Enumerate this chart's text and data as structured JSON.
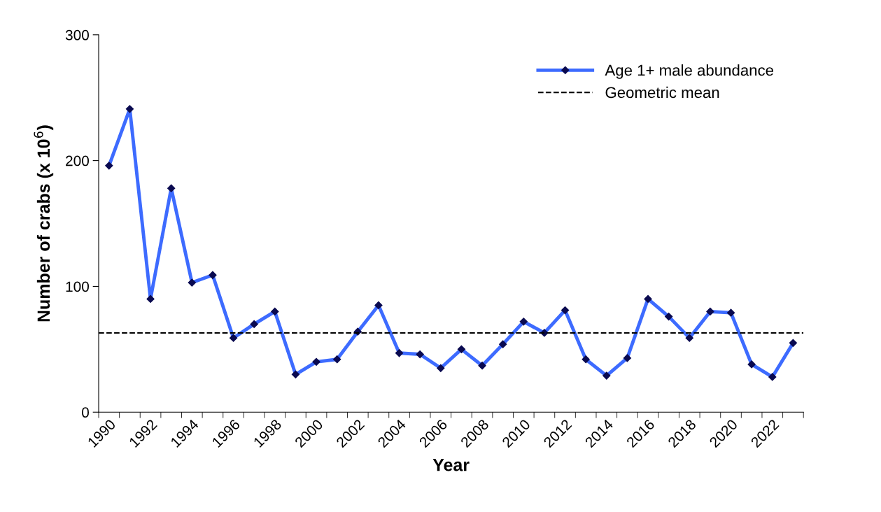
{
  "chart_data": {
    "type": "line",
    "xlabel": "Year",
    "ylabel": "Number of crabs (x 10$^{6}$)",
    "categories": [
      "1990",
      null,
      "1992",
      null,
      "1994",
      null,
      "1996",
      null,
      "1998",
      null,
      "2000",
      null,
      "2002",
      null,
      "2004",
      null,
      "2006",
      null,
      "2008",
      null,
      "2010",
      null,
      "2012",
      null,
      "2014",
      null,
      "2016",
      null,
      "2018",
      null,
      "2020",
      null,
      "2022",
      null
    ],
    "series": [
      {
        "name": "Age 1+ male abundance",
        "color": "#3d6bff",
        "values": [
          196,
          241,
          90,
          178,
          103,
          109,
          59,
          70,
          80,
          30,
          40,
          42,
          64,
          85,
          47,
          46,
          35,
          50,
          37,
          54,
          72,
          63,
          81,
          42,
          29,
          43,
          90,
          76,
          59,
          80,
          79,
          38,
          28,
          55
        ]
      }
    ],
    "ref_lines": [
      {
        "axis": "y",
        "value": 63,
        "label": "Geometric mean",
        "color": "#000000",
        "line_style": "dashed"
      }
    ],
    "ylim": [
      0,
      300
    ],
    "yticks": [
      0,
      100,
      200,
      300
    ],
    "marker": "diamond",
    "line_style": "solid",
    "legend": "top right",
    "grid": false
  }
}
